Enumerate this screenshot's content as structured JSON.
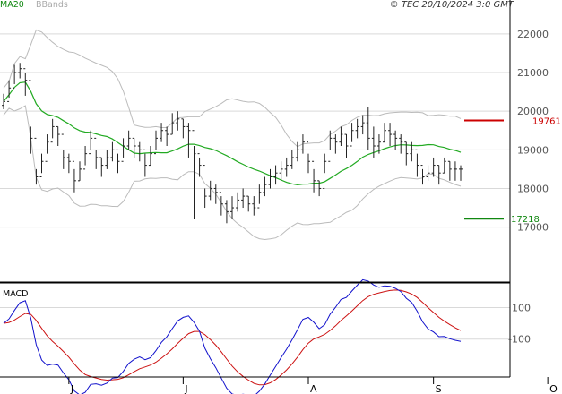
{
  "header": {
    "legend_ma": "MA20",
    "legend_bb": "BBands",
    "copyright": "© TEC 20/10/2024 3:0 GMT"
  },
  "colors": {
    "bar": "#222222",
    "ma": "#22aa22",
    "band": "#bbbbbb",
    "grid": "#d9d9d9",
    "resistance": "#cc0000",
    "support": "#118811",
    "macd": "#1111cc",
    "signal": "#cc1111"
  },
  "chart_data": [
    {
      "type": "ohlc",
      "title": "",
      "xlabel": "",
      "ylabel": "",
      "ylim": [
        15600,
        22600
      ],
      "y_ticks": [
        {
          "value": 17000,
          "label": "17000"
        },
        {
          "value": 18000,
          "label": "18000"
        },
        {
          "value": 19000,
          "label": "19000"
        },
        {
          "value": 20000,
          "label": "20000"
        },
        {
          "value": 21000,
          "label": "21000"
        },
        {
          "value": 22000,
          "label": "22000"
        }
      ],
      "months": [
        {
          "label": "J",
          "index": 12
        },
        {
          "label": "J",
          "index": 33
        },
        {
          "label": "A",
          "index": 56
        },
        {
          "label": "S",
          "index": 79
        },
        {
          "label": "O",
          "index": 100
        }
      ],
      "close": [
        20250,
        20600,
        21000,
        21100,
        20800,
        19300,
        18300,
        18700,
        19200,
        19600,
        19400,
        18800,
        18700,
        18200,
        18500,
        18900,
        19300,
        18800,
        18600,
        18800,
        19000,
        18700,
        19100,
        19300,
        19100,
        19000,
        18600,
        18900,
        19300,
        19500,
        19400,
        19700,
        19800,
        19600,
        19500,
        18900,
        18600,
        17800,
        18000,
        17900,
        17600,
        17400,
        17500,
        17700,
        17800,
        17600,
        17500,
        17900,
        18100,
        18300,
        18400,
        18500,
        18600,
        18800,
        19000,
        19200,
        18700,
        18200,
        18000,
        18700,
        19300,
        19200,
        19400,
        19100,
        19500,
        19600,
        19700,
        19300,
        19100,
        19200,
        19500,
        19400,
        19300,
        19200,
        18900,
        19000,
        18600,
        18300,
        18400,
        18600,
        18400,
        18700,
        18500,
        18500,
        18500
      ],
      "high": [
        20450,
        20800,
        21200,
        21250,
        21000,
        19600,
        18500,
        18900,
        19400,
        19800,
        19600,
        19000,
        18900,
        18500,
        18700,
        19100,
        19500,
        19000,
        18800,
        19000,
        19200,
        18900,
        19300,
        19500,
        19300,
        19200,
        18900,
        19100,
        19500,
        19700,
        19600,
        19950,
        20000,
        19800,
        19700,
        19100,
        18800,
        18000,
        18200,
        18100,
        17800,
        17700,
        17800,
        17900,
        18000,
        17800,
        17800,
        18100,
        18300,
        18500,
        18600,
        18700,
        18800,
        19000,
        19200,
        19400,
        18900,
        18500,
        18200,
        18900,
        19500,
        19400,
        19600,
        19400,
        19700,
        19800,
        19900,
        20100,
        19600,
        19400,
        19700,
        19700,
        19500,
        19400,
        19200,
        19200,
        18900,
        18500,
        18600,
        18800,
        18600,
        18800,
        18700,
        18700,
        18600
      ],
      "low": [
        20050,
        20350,
        20700,
        20850,
        20400,
        18900,
        18100,
        18400,
        18900,
        19300,
        19100,
        18500,
        18400,
        17900,
        18200,
        18600,
        19000,
        18500,
        18300,
        18500,
        18700,
        18400,
        18800,
        19000,
        18800,
        18700,
        18300,
        18600,
        19000,
        19200,
        19100,
        19400,
        19500,
        19300,
        18800,
        17200,
        18300,
        17500,
        17700,
        17600,
        17300,
        17100,
        17200,
        17400,
        17500,
        17400,
        17300,
        17600,
        17800,
        18000,
        18100,
        18200,
        18300,
        18500,
        18700,
        18900,
        18400,
        17900,
        17800,
        18400,
        19000,
        18900,
        19100,
        18800,
        19200,
        19300,
        19400,
        19000,
        18800,
        18900,
        19200,
        19100,
        19000,
        18900,
        18600,
        18700,
        18300,
        18100,
        18200,
        18300,
        18100,
        18400,
        18200,
        18200,
        18200
      ]
    },
    {
      "type": "line",
      "title": "MACD",
      "ylim": [
        -340,
        250
      ],
      "y_ticks": [
        {
          "value": 100,
          "label": "100"
        },
        {
          "value": -100,
          "label": "-100"
        }
      ]
    }
  ],
  "levels": {
    "resistance": {
      "value": 19761,
      "label": "19761"
    },
    "support": {
      "value": 17218,
      "label": "17218"
    }
  }
}
